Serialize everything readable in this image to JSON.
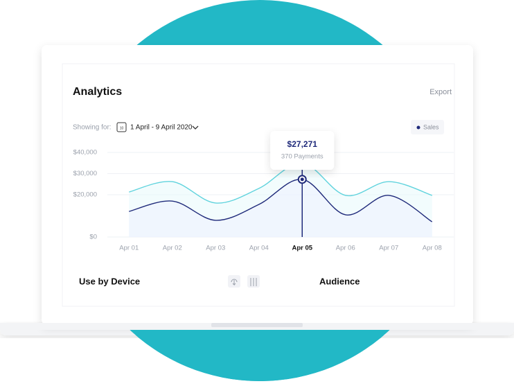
{
  "header": {
    "title": "Analytics",
    "action": "Export"
  },
  "filter": {
    "label": "Showing for:",
    "calendar_day": "10",
    "range": "1 April - 9 April 2020"
  },
  "tooltip": {
    "value": "$27,271",
    "caption": "370 Payments"
  },
  "sections": [
    "Use by Device",
    "Audience"
  ],
  "chart_data": {
    "type": "line",
    "categories": [
      "Apr 01",
      "Apr 02",
      "Apr 03",
      "Apr 04",
      "Apr 05",
      "Apr 06",
      "Apr 07",
      "Apr 08"
    ],
    "active_index": 4,
    "series": [
      {
        "name": "Sales",
        "color": "#1f2a7a",
        "values": [
          12100,
          17000,
          7900,
          15400,
          27271,
          10500,
          19700,
          7200
        ]
      },
      {
        "color": "#5fd3dd",
        "values": [
          21300,
          26200,
          16100,
          23000,
          35000,
          19700,
          26200,
          19700
        ]
      }
    ],
    "ylim": [
      0,
      40000
    ],
    "yticks": [
      {
        "value": 0,
        "label": "$0"
      },
      {
        "value": 20000,
        "label": "$20,000"
      },
      {
        "value": 30000,
        "label": "$30,000"
      },
      {
        "value": 40000,
        "label": "$40,000"
      }
    ],
    "grid": true
  }
}
